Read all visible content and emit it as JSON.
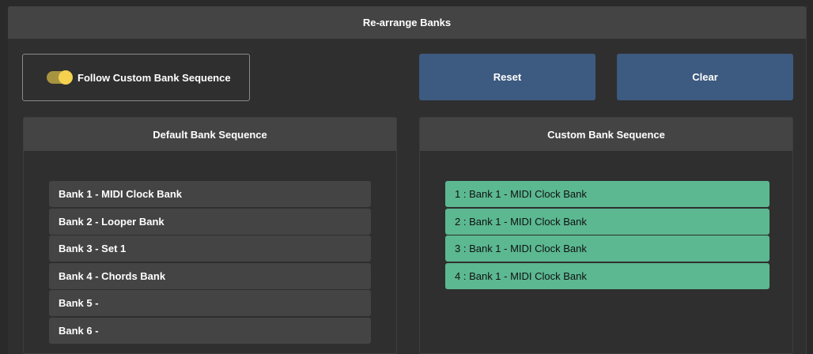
{
  "window": {
    "title": "Re-arrange Banks"
  },
  "toggle": {
    "label": "Follow Custom Bank Sequence",
    "on": true,
    "color": "#f5d150"
  },
  "buttons": {
    "reset": "Reset",
    "clear": "Clear",
    "color": "#3d5a80"
  },
  "default_panel": {
    "title": "Default Bank Sequence",
    "items": [
      "Bank 1 - MIDI Clock Bank",
      "Bank 2 - Looper Bank",
      "Bank 3 - Set 1",
      "Bank 4 - Chords Bank",
      "Bank 5 -",
      "Bank 6 -"
    ]
  },
  "custom_panel": {
    "title": "Custom Bank Sequence",
    "item_color": "#5bb891",
    "items": [
      "1 : Bank 1 - MIDI Clock Bank",
      "2 : Bank 1 - MIDI Clock Bank",
      "3 : Bank 1 - MIDI Clock Bank",
      "4 : Bank 1 - MIDI Clock Bank"
    ]
  }
}
